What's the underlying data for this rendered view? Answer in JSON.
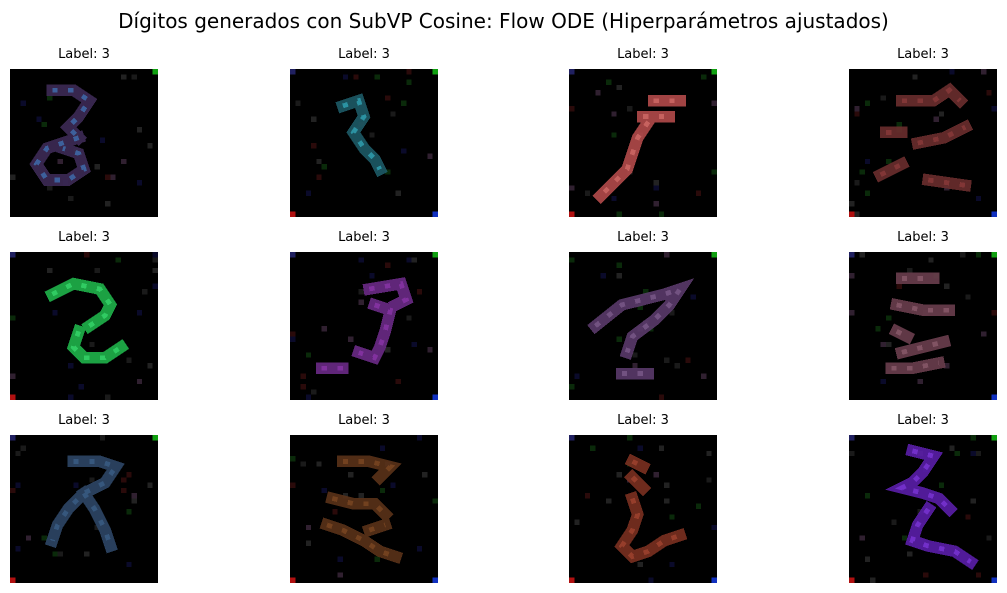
{
  "title": "Dígitos generados con SubVP Cosine: Flow ODE (Hiperparámetros ajustados)",
  "samples": [
    {
      "label": "Label: 3",
      "stroke_color": "#3d2a55",
      "accent": "#3e6fb0"
    },
    {
      "label": "Label: 3",
      "stroke_color": "#1d5a66",
      "accent": "#2fa3b4"
    },
    {
      "label": "Label: 3",
      "stroke_color": "#b24a4a",
      "accent": "#d06a66"
    },
    {
      "label": "Label: 3",
      "stroke_color": "#6a2e2e",
      "accent": "#8a3a3a"
    },
    {
      "label": "Label: 3",
      "stroke_color": "#1fb24a",
      "accent": "#36d66a"
    },
    {
      "label": "Label: 3",
      "stroke_color": "#6a2a86",
      "accent": "#8a34a8"
    },
    {
      "label": "Label: 3",
      "stroke_color": "#5a3a6a",
      "accent": "#7a5a8a"
    },
    {
      "label": "Label: 3",
      "stroke_color": "#6a3e4e",
      "accent": "#8a5a6a"
    },
    {
      "label": "Label: 3",
      "stroke_color": "#2e4666",
      "accent": "#3a5e86"
    },
    {
      "label": "Label: 3",
      "stroke_color": "#5a3218",
      "accent": "#7a4622"
    },
    {
      "label": "Label: 3",
      "stroke_color": "#7a3020",
      "accent": "#a04430"
    },
    {
      "label": "Label: 3",
      "stroke_color": "#5a1ea8",
      "accent": "#7a34d6"
    }
  ]
}
